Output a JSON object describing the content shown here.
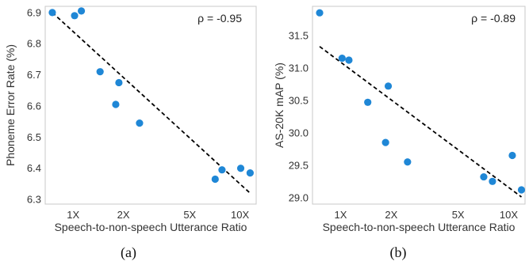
{
  "chart_data": [
    {
      "type": "scatter",
      "caption": "(a)",
      "xlabel": "Speech-to-non-speech Utterance Ratio",
      "ylabel": "Phoneme Error Rate (%)",
      "xscale": "log",
      "xlim": [
        0.68,
        12.5
      ],
      "ylim": [
        6.285,
        6.92
      ],
      "xticks": [
        {
          "value": 1,
          "label": "1X"
        },
        {
          "value": 2,
          "label": "2X"
        },
        {
          "value": 5,
          "label": "5X"
        },
        {
          "value": 10,
          "label": "10X"
        }
      ],
      "yticks": [
        {
          "value": 6.3,
          "label": "6.3"
        },
        {
          "value": 6.4,
          "label": "6.4"
        },
        {
          "value": 6.5,
          "label": "6.5"
        },
        {
          "value": 6.6,
          "label": "6.6"
        },
        {
          "value": 6.7,
          "label": "6.7"
        },
        {
          "value": 6.8,
          "label": "6.8"
        },
        {
          "value": 6.9,
          "label": "6.9"
        }
      ],
      "annotation": "ρ = -0.95",
      "annotation_position": "top-right",
      "grid": false,
      "marker_color": "#1f87d6",
      "points": [
        {
          "x": 0.75,
          "y": 6.9
        },
        {
          "x": 1.02,
          "y": 6.89
        },
        {
          "x": 1.12,
          "y": 6.905
        },
        {
          "x": 1.45,
          "y": 6.71
        },
        {
          "x": 1.8,
          "y": 6.605
        },
        {
          "x": 1.88,
          "y": 6.675
        },
        {
          "x": 2.5,
          "y": 6.545
        },
        {
          "x": 7.1,
          "y": 6.365
        },
        {
          "x": 7.8,
          "y": 6.395
        },
        {
          "x": 10.1,
          "y": 6.4
        },
        {
          "x": 11.5,
          "y": 6.385
        }
      ],
      "fit_line": {
        "style": "dashed",
        "color": "#000000",
        "start": {
          "x": 0.75,
          "y": 6.9
        },
        "end": {
          "x": 11.5,
          "y": 6.32
        }
      }
    },
    {
      "type": "scatter",
      "caption": "(b)",
      "xlabel": "Speech-to-non-speech Utterance Ratio",
      "ylabel": "AS-20K mAP (%)",
      "xscale": "log",
      "xlim": [
        0.68,
        12.5
      ],
      "ylim": [
        28.9,
        31.95
      ],
      "xticks": [
        {
          "value": 1,
          "label": "1X"
        },
        {
          "value": 2,
          "label": "2X"
        },
        {
          "value": 5,
          "label": "5X"
        },
        {
          "value": 10,
          "label": "10X"
        }
      ],
      "yticks": [
        {
          "value": 29.0,
          "label": "29.0"
        },
        {
          "value": 29.5,
          "label": "29.5"
        },
        {
          "value": 30.0,
          "label": "30.0"
        },
        {
          "value": 30.5,
          "label": "30.5"
        },
        {
          "value": 31.0,
          "label": "31.0"
        },
        {
          "value": 31.5,
          "label": "31.5"
        }
      ],
      "annotation": "ρ = -0.89",
      "annotation_position": "top-right",
      "grid": false,
      "marker_color": "#1f87d6",
      "points": [
        {
          "x": 0.75,
          "y": 31.85
        },
        {
          "x": 1.02,
          "y": 31.15
        },
        {
          "x": 1.12,
          "y": 31.12
        },
        {
          "x": 1.45,
          "y": 30.47
        },
        {
          "x": 1.85,
          "y": 29.85
        },
        {
          "x": 1.92,
          "y": 30.72
        },
        {
          "x": 2.5,
          "y": 29.55
        },
        {
          "x": 7.1,
          "y": 29.32
        },
        {
          "x": 8.0,
          "y": 29.25
        },
        {
          "x": 10.5,
          "y": 29.65
        },
        {
          "x": 11.9,
          "y": 29.12
        }
      ],
      "fit_line": {
        "style": "dashed",
        "color": "#000000",
        "start": {
          "x": 0.75,
          "y": 31.33
        },
        "end": {
          "x": 11.9,
          "y": 29.01
        }
      }
    }
  ]
}
